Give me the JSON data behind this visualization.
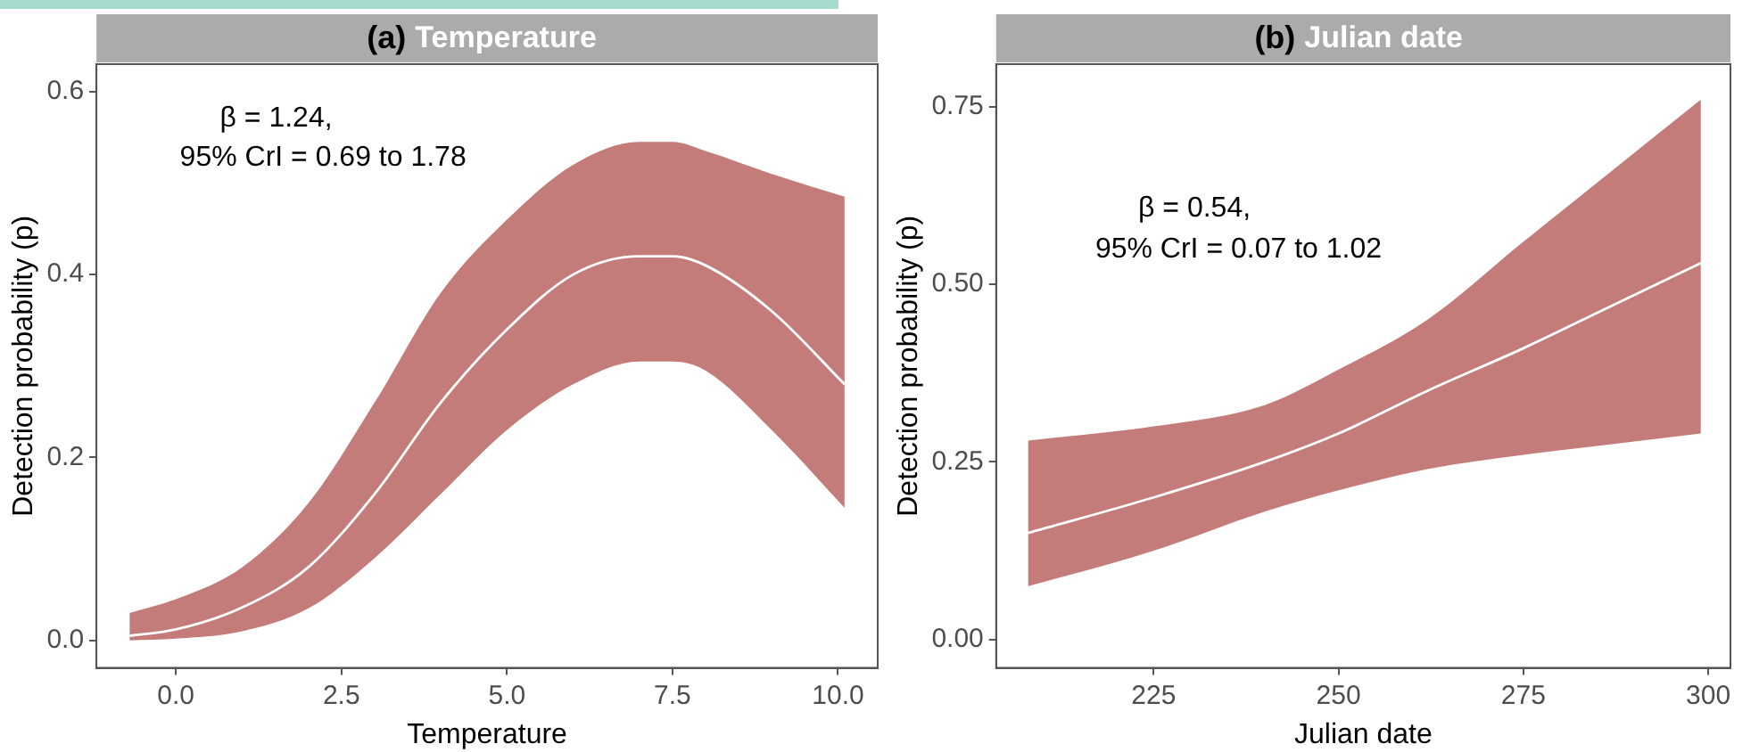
{
  "chart_data": [
    {
      "type": "line",
      "title": "(a) Temperature",
      "xlabel": "Temperature",
      "ylabel": "Detection probability (p)",
      "annotations": [
        "β = 1.24,",
        "95% CrI = 0.69 to 1.78"
      ],
      "xlim": [
        -1.2,
        10.6
      ],
      "ylim": [
        -0.03,
        0.63
      ],
      "xticks": [
        {
          "value": 0,
          "label": "0.0"
        },
        {
          "value": 2.5,
          "label": "2.5"
        },
        {
          "value": 5,
          "label": "5.0"
        },
        {
          "value": 7.5,
          "label": "7.5"
        },
        {
          "value": 10,
          "label": "10.0"
        }
      ],
      "yticks": [
        {
          "value": 0,
          "label": "0.0"
        },
        {
          "value": 0.2,
          "label": "0.2"
        },
        {
          "value": 0.4,
          "label": "0.4"
        },
        {
          "value": 0.6,
          "label": "0.6"
        }
      ],
      "grid": false,
      "legend": false,
      "series": [
        {
          "color": "#ffffff",
          "x": [
            -0.7,
            0,
            1,
            2,
            3,
            4,
            5,
            6,
            7,
            7.5,
            8,
            9,
            10.1
          ],
          "values": [
            0.005,
            0.012,
            0.036,
            0.08,
            0.16,
            0.26,
            0.34,
            0.4,
            0.42,
            0.42,
            0.41,
            0.36,
            0.28
          ],
          "lower": [
            0.0,
            0.002,
            0.01,
            0.035,
            0.09,
            0.16,
            0.23,
            0.28,
            0.305,
            0.305,
            0.295,
            0.23,
            0.145
          ],
          "upper": [
            0.03,
            0.045,
            0.08,
            0.15,
            0.26,
            0.38,
            0.46,
            0.52,
            0.545,
            0.545,
            0.535,
            0.51,
            0.485
          ]
        }
      ]
    },
    {
      "type": "line",
      "title": "(b) Julian date",
      "xlabel": "Julian date",
      "ylabel": "Detection probability (p)",
      "annotations": [
        "β = 0.54,",
        "95% CrI = 0.07 to 1.02"
      ],
      "xlim": [
        203.7,
        303
      ],
      "ylim": [
        -0.04,
        0.81
      ],
      "xticks": [
        225,
        250,
        275,
        300
      ],
      "yticks": [
        {
          "value": 0,
          "label": "0.00"
        },
        {
          "value": 0.25,
          "label": "0.25"
        },
        {
          "value": 0.5,
          "label": "0.50"
        },
        {
          "value": 0.75,
          "label": "0.75"
        }
      ],
      "grid": false,
      "legend": false,
      "series": [
        {
          "color": "#ffffff",
          "x": [
            208,
            225,
            240,
            250,
            262,
            275,
            287,
            299
          ],
          "values": [
            0.15,
            0.2,
            0.25,
            0.29,
            0.35,
            0.41,
            0.47,
            0.53
          ],
          "lower": [
            0.075,
            0.125,
            0.18,
            0.21,
            0.24,
            0.26,
            0.275,
            0.29
          ],
          "upper": [
            0.28,
            0.3,
            0.33,
            0.38,
            0.45,
            0.56,
            0.66,
            0.76
          ]
        }
      ]
    }
  ]
}
